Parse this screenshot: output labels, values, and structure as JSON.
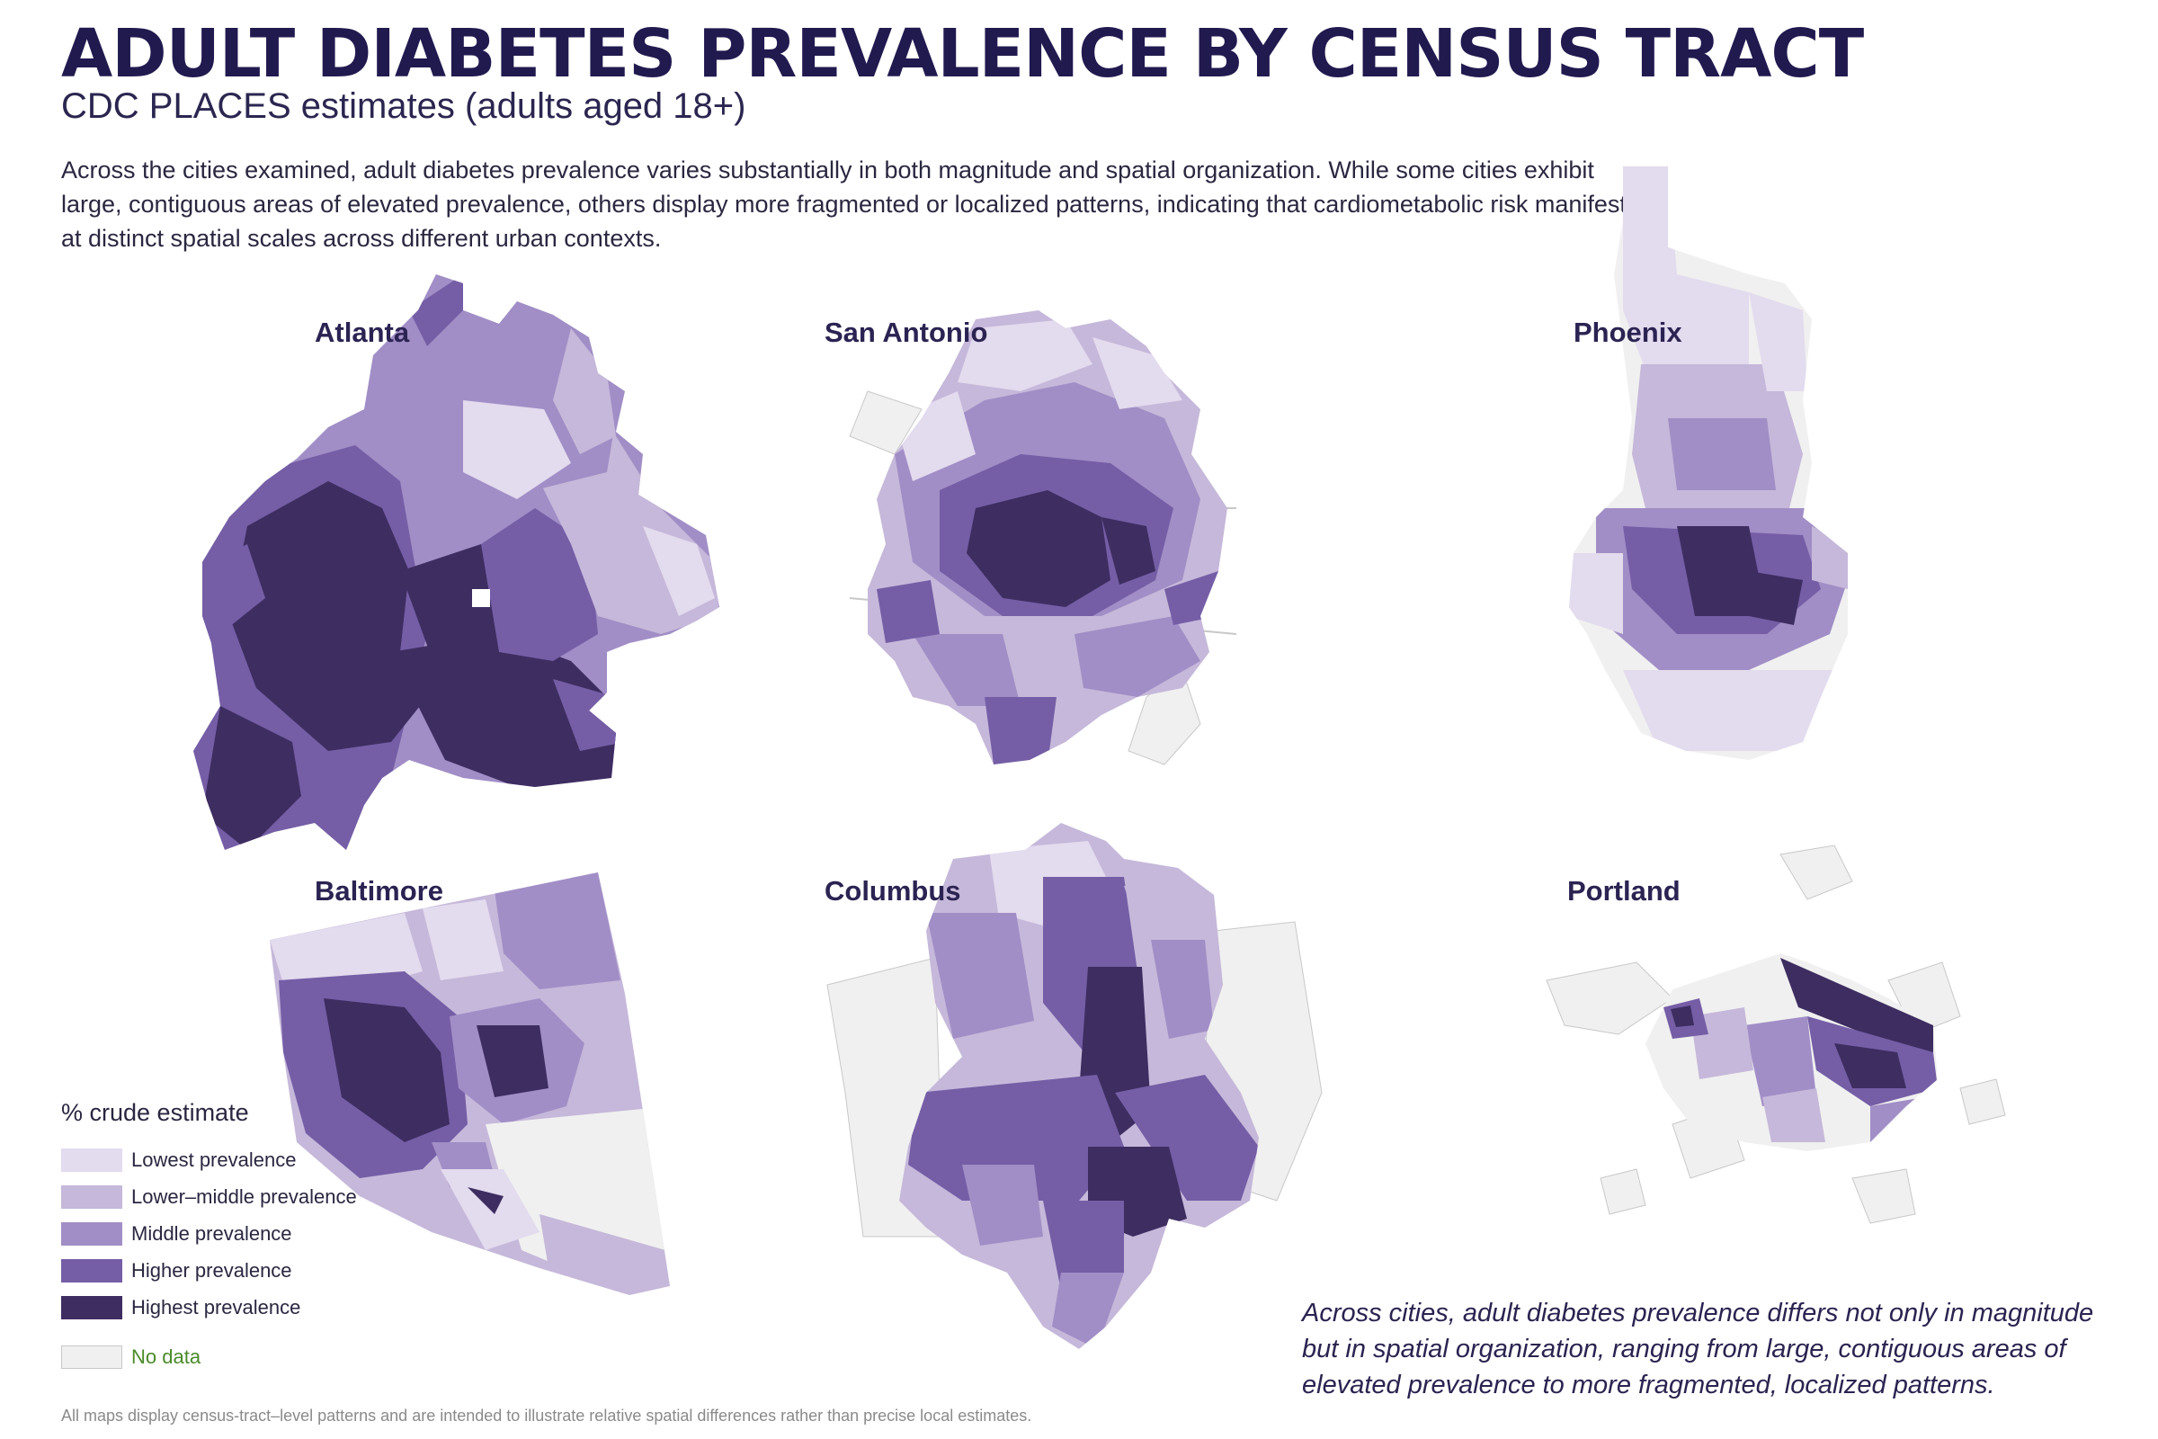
{
  "header": {
    "title": "ADULT DIABETES PREVALENCE BY CENSUS TRACT",
    "subtitle": "CDC PLACES estimates (adults aged 18+)",
    "intro": "Across the cities examined, adult diabetes prevalence varies substantially in both magnitude and spatial organization. While some cities exhibit large, contiguous areas of elevated prevalence, others display more fragmented or localized patterns, indicating that cardiometabolic risk manifests at distinct spatial scales across different urban contexts."
  },
  "cities": [
    {
      "name": "Atlanta"
    },
    {
      "name": "San Antonio"
    },
    {
      "name": "Phoenix"
    },
    {
      "name": "Baltimore"
    },
    {
      "name": "Columbus"
    },
    {
      "name": "Portland"
    }
  ],
  "legend": {
    "title": "% crude estimate",
    "classes": [
      {
        "label": "Lowest prevalence",
        "color": "#e3dbee"
      },
      {
        "label": "Lower–middle prevalence",
        "color": "#c6b8da"
      },
      {
        "label": "Middle prevalence",
        "color": "#a18ec6"
      },
      {
        "label": "Higher prevalence",
        "color": "#755ea6"
      },
      {
        "label": "Highest prevalence",
        "color": "#3e2d61"
      }
    ],
    "no_data": {
      "label": "No data",
      "color": "#f0f0f0"
    }
  },
  "conclusion": "Across cities, adult diabetes prevalence differs not only in magnitude but in spatial organization, ranging from large, contiguous areas of elevated prevalence to more fragmented, localized patterns.",
  "footnote": "All maps display census-tract–level patterns and are intended to illustrate relative spatial differences rather than precise local estimates."
}
